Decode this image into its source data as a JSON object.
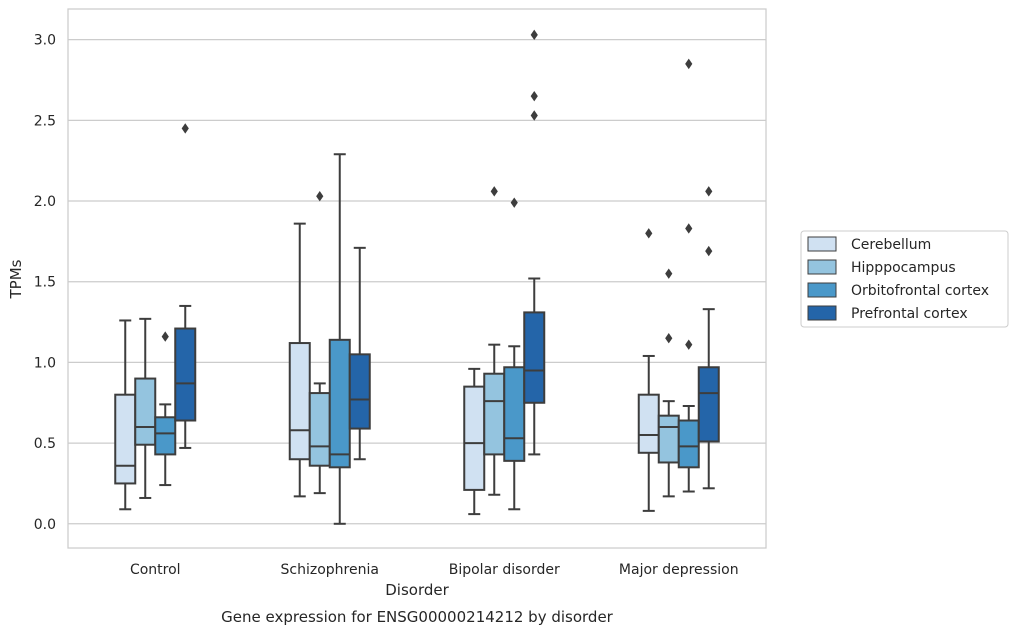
{
  "chart_data": {
    "type": "box",
    "caption": "Gene expression for ENSG00000214212 by disorder",
    "xlabel": "Disorder",
    "ylabel": "TPMs",
    "ylim": [
      -0.15,
      3.19
    ],
    "yticks": [
      "0.0",
      "0.5",
      "1.0",
      "1.5",
      "2.0",
      "2.5",
      "3.0"
    ],
    "grid": "horizontal",
    "legend_position": "right",
    "categories": [
      "Control",
      "Schizophrenia",
      "Bipolar disorder",
      "Major depression"
    ],
    "series": [
      {
        "name": "Cerebellum",
        "color": "#d0e1f2",
        "boxes": [
          {
            "whisker_low": 0.09,
            "q1": 0.25,
            "median": 0.36,
            "q3": 0.8,
            "whisker_high": 1.26,
            "outliers": []
          },
          {
            "whisker_low": 0.17,
            "q1": 0.4,
            "median": 0.58,
            "q3": 1.12,
            "whisker_high": 1.86,
            "outliers": []
          },
          {
            "whisker_low": 0.06,
            "q1": 0.21,
            "median": 0.5,
            "q3": 0.85,
            "whisker_high": 0.96,
            "outliers": []
          },
          {
            "whisker_low": 0.08,
            "q1": 0.44,
            "median": 0.55,
            "q3": 0.8,
            "whisker_high": 1.04,
            "outliers": [
              1.8
            ]
          }
        ]
      },
      {
        "name": "Hipppocampus",
        "color": "#94c4df",
        "boxes": [
          {
            "whisker_low": 0.16,
            "q1": 0.49,
            "median": 0.6,
            "q3": 0.9,
            "whisker_high": 1.27,
            "outliers": []
          },
          {
            "whisker_low": 0.19,
            "q1": 0.36,
            "median": 0.48,
            "q3": 0.81,
            "whisker_high": 0.87,
            "outliers": [
              2.03
            ]
          },
          {
            "whisker_low": 0.18,
            "q1": 0.43,
            "median": 0.76,
            "q3": 0.93,
            "whisker_high": 1.11,
            "outliers": [
              2.06
            ]
          },
          {
            "whisker_low": 0.17,
            "q1": 0.38,
            "median": 0.6,
            "q3": 0.67,
            "whisker_high": 0.76,
            "outliers": [
              1.15,
              1.55
            ]
          }
        ]
      },
      {
        "name": "Orbitofrontal cortex",
        "color": "#4a98c9",
        "boxes": [
          {
            "whisker_low": 0.24,
            "q1": 0.43,
            "median": 0.56,
            "q3": 0.66,
            "whisker_high": 0.74,
            "outliers": [
              1.16
            ]
          },
          {
            "whisker_low": 0.0,
            "q1": 0.35,
            "median": 0.43,
            "q3": 1.14,
            "whisker_high": 2.29,
            "outliers": []
          },
          {
            "whisker_low": 0.09,
            "q1": 0.39,
            "median": 0.53,
            "q3": 0.97,
            "whisker_high": 1.1,
            "outliers": [
              1.99
            ]
          },
          {
            "whisker_low": 0.2,
            "q1": 0.35,
            "median": 0.48,
            "q3": 0.64,
            "whisker_high": 0.73,
            "outliers": [
              1.11,
              1.83,
              2.85
            ]
          }
        ]
      },
      {
        "name": "Prefrontal cortex",
        "color": "#2465a9",
        "boxes": [
          {
            "whisker_low": 0.47,
            "q1": 0.64,
            "median": 0.87,
            "q3": 1.21,
            "whisker_high": 1.35,
            "outliers": [
              2.45
            ]
          },
          {
            "whisker_low": 0.4,
            "q1": 0.59,
            "median": 0.77,
            "q3": 1.05,
            "whisker_high": 1.71,
            "outliers": []
          },
          {
            "whisker_low": 0.43,
            "q1": 0.75,
            "median": 0.95,
            "q3": 1.31,
            "whisker_high": 1.52,
            "outliers": [
              2.53,
              2.65,
              3.03
            ]
          },
          {
            "whisker_low": 0.22,
            "q1": 0.51,
            "median": 0.81,
            "q3": 0.97,
            "whisker_high": 1.33,
            "outliers": [
              1.69,
              2.06
            ]
          }
        ]
      }
    ]
  }
}
